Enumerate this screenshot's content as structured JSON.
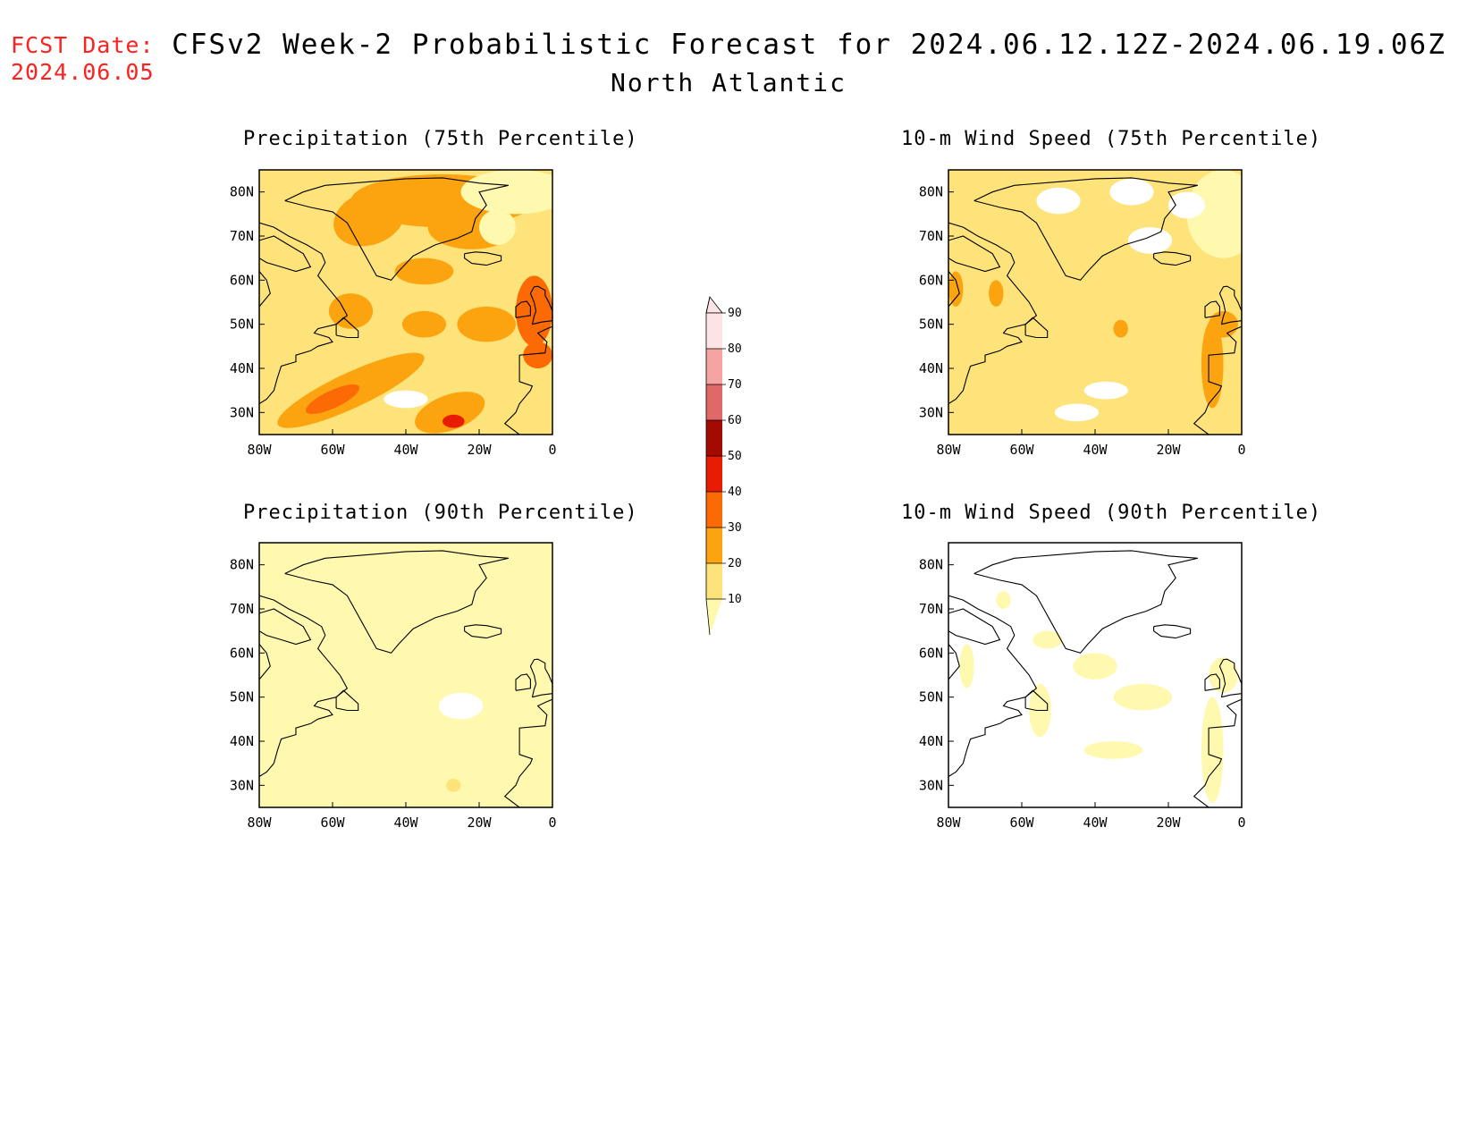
{
  "header": {
    "fcst_label": "FCST Date:",
    "fcst_date": "2024.06.05",
    "title": "CFSv2 Week-2 Probabilistic Forecast for 2024.06.12.12Z-2024.06.19.06Z",
    "region": "North Atlantic"
  },
  "axes": {
    "x_ticks": [
      "80W",
      "60W",
      "40W",
      "20W",
      "0"
    ],
    "y_ticks": [
      "80N",
      "70N",
      "60N",
      "50N",
      "40N",
      "30N"
    ]
  },
  "panels": [
    {
      "id": "precip-75",
      "title": "Precipitation (75th Percentile)",
      "dominant_level": 20
    },
    {
      "id": "wind-75",
      "title": "10-m Wind Speed (75th Percentile)",
      "dominant_level": 20
    },
    {
      "id": "precip-90",
      "title": "Precipitation (90th Percentile)",
      "dominant_level": 10
    },
    {
      "id": "wind-90",
      "title": "10-m Wind Speed (90th Percentile)",
      "dominant_level": 0
    }
  ],
  "colorbar": {
    "levels": [
      "10",
      "20",
      "30",
      "40",
      "50",
      "60",
      "70",
      "80",
      "90"
    ],
    "colors": [
      "#fff9b0",
      "#fde37a",
      "#fca40f",
      "#fb6a05",
      "#e81c02",
      "#a30b00",
      "#e06868",
      "#f5a4a4",
      "#fde3e3"
    ]
  }
}
